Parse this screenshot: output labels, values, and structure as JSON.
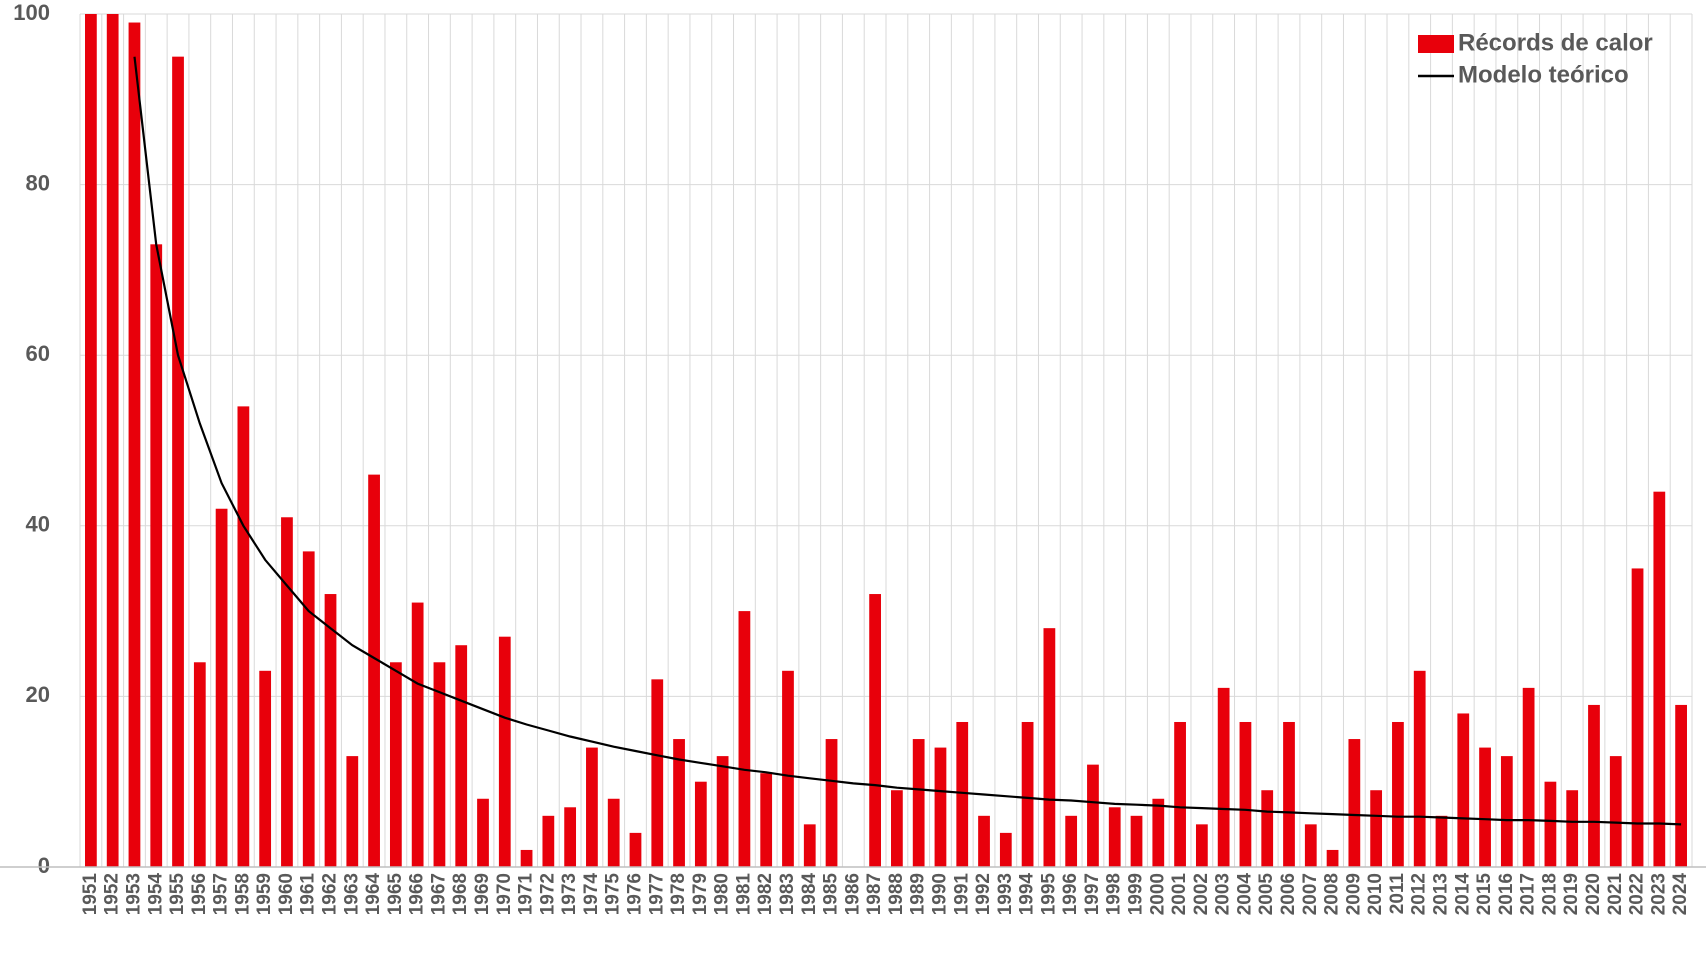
{
  "chart_data": {
    "type": "bar",
    "categories": [
      "1951",
      "1952",
      "1953",
      "1954",
      "1955",
      "1956",
      "1957",
      "1958",
      "1959",
      "1960",
      "1961",
      "1962",
      "1963",
      "1964",
      "1965",
      "1966",
      "1967",
      "1968",
      "1969",
      "1970",
      "1971",
      "1972",
      "1973",
      "1974",
      "1975",
      "1976",
      "1977",
      "1978",
      "1979",
      "1980",
      "1981",
      "1982",
      "1983",
      "1984",
      "1985",
      "1986",
      "1987",
      "1988",
      "1989",
      "1990",
      "1991",
      "1992",
      "1993",
      "1994",
      "1995",
      "1996",
      "1997",
      "1998",
      "1999",
      "2000",
      "2001",
      "2002",
      "2003",
      "2004",
      "2005",
      "2006",
      "2007",
      "2008",
      "2009",
      "2010",
      "2011",
      "2012",
      "2013",
      "2014",
      "2015",
      "2016",
      "2017",
      "2018",
      "2019",
      "2020",
      "2021",
      "2022",
      "2023",
      "2024"
    ],
    "series": [
      {
        "name": "Récords de calor",
        "type": "bar",
        "color": "#e8000b",
        "values": [
          100,
          100,
          99,
          73,
          95,
          24,
          42,
          54,
          23,
          41,
          37,
          32,
          13,
          46,
          24,
          31,
          24,
          26,
          8,
          27,
          2,
          6,
          7,
          14,
          8,
          4,
          22,
          15,
          10,
          13,
          30,
          11,
          23,
          5,
          15,
          0,
          32,
          9,
          15,
          14,
          17,
          6,
          4,
          17,
          28,
          6,
          12,
          7,
          6,
          8,
          17,
          5,
          21,
          17,
          9,
          17,
          5,
          2,
          15,
          9,
          17,
          23,
          6,
          18,
          14,
          13,
          21,
          10,
          9,
          19,
          13,
          35,
          44,
          19
        ]
      },
      {
        "name": "Modelo teórico",
        "type": "line",
        "color": "#000000",
        "values": [
          null,
          null,
          95,
          73,
          60,
          52,
          45,
          40,
          36,
          33,
          30,
          28,
          26,
          24.5,
          23,
          21.5,
          20.5,
          19.5,
          18.5,
          17.5,
          16.7,
          16,
          15.3,
          14.7,
          14.1,
          13.6,
          13.1,
          12.6,
          12.2,
          11.8,
          11.4,
          11.1,
          10.7,
          10.4,
          10.1,
          9.8,
          9.6,
          9.3,
          9.1,
          8.9,
          8.7,
          8.5,
          8.3,
          8.1,
          7.9,
          7.8,
          7.6,
          7.4,
          7.3,
          7.2,
          7.0,
          6.9,
          6.8,
          6.7,
          6.5,
          6.4,
          6.3,
          6.2,
          6.1,
          6.0,
          5.9,
          5.9,
          5.8,
          5.7,
          5.6,
          5.5,
          5.5,
          5.4,
          5.3,
          5.3,
          5.2,
          5.1,
          5.1,
          5.0
        ]
      }
    ],
    "ylim": [
      0,
      100
    ],
    "yticks": [
      0,
      20,
      40,
      60,
      80,
      100
    ],
    "grid": true,
    "legend": "top-right"
  }
}
